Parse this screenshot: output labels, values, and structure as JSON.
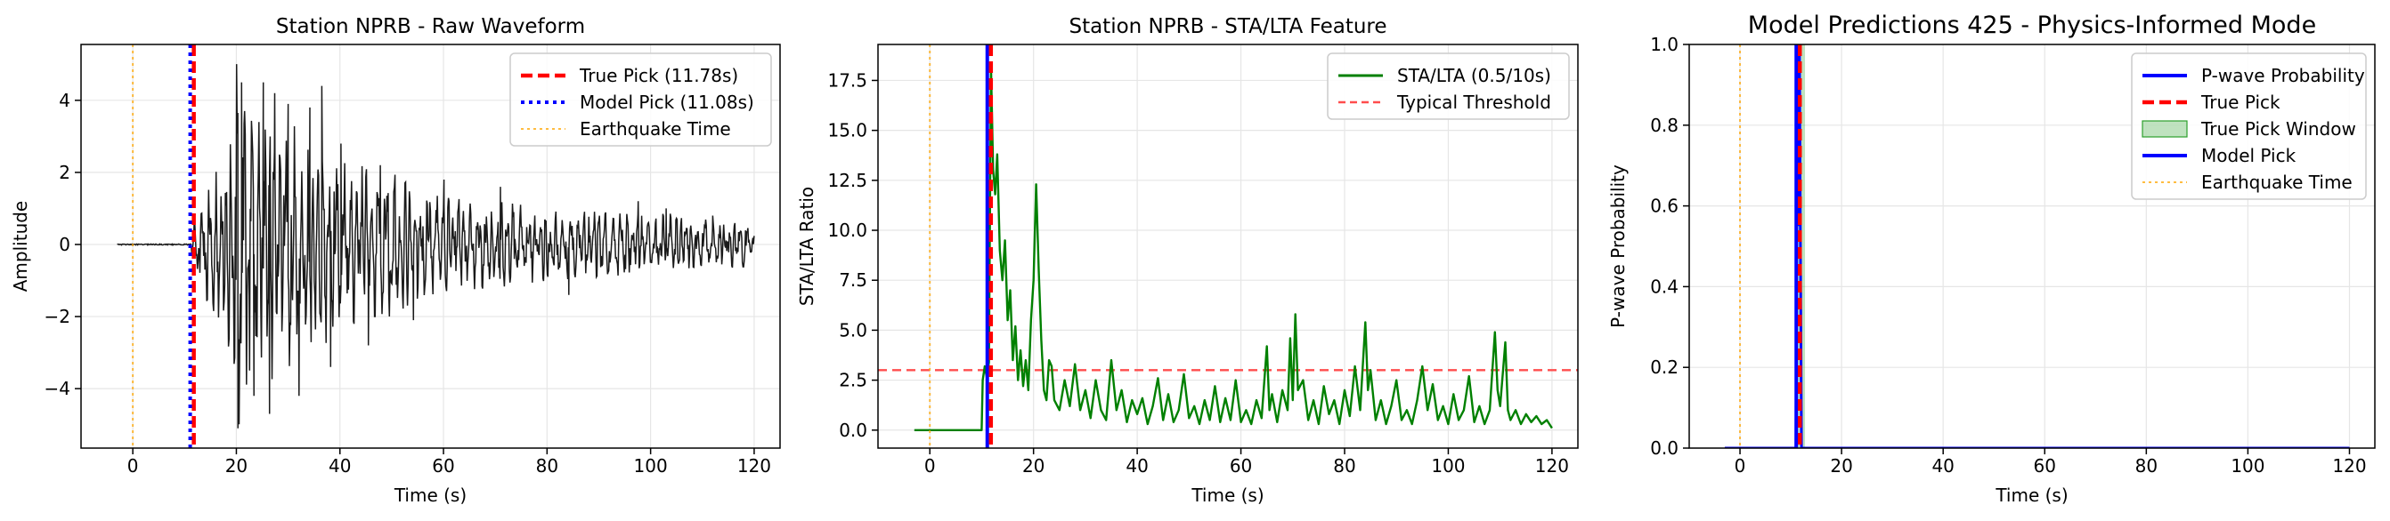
{
  "colors": {
    "waveform": "#1a1a1a",
    "sta_lta": "#008000",
    "true_pick": "#ff0000",
    "model_pick_raw": "#0000ff",
    "model_pick": "#0000ff",
    "earthquake": "#ffa500",
    "threshold": "#ff4d4d",
    "pick_window": "#2ca02c",
    "probability": "#0000ff",
    "grid": "#e6e6e6"
  },
  "chart_data": [
    {
      "type": "line",
      "title": "Station NPRB - Raw Waveform",
      "xlabel": "Time (s)",
      "ylabel": "Amplitude",
      "xlim": [
        -10,
        125
      ],
      "ylim": [
        -5.65,
        5.55
      ],
      "xticks": [
        0,
        20,
        40,
        60,
        80,
        100,
        120
      ],
      "yticks": [
        -4,
        -2,
        0,
        2,
        4
      ],
      "xtick_labels": [
        "0",
        "20",
        "40",
        "60",
        "80",
        "100",
        "120"
      ],
      "ytick_labels": [
        "−4",
        "−2",
        "0",
        "2",
        "4"
      ],
      "grid": true,
      "legend_position": "top-right",
      "series": [
        {
          "name": "True Pick (11.78s)",
          "kind": "vline",
          "x": 11.78,
          "style": "dashed"
        },
        {
          "name": "Model Pick (11.08s)",
          "kind": "vline",
          "x": 11.08,
          "style": "dotted"
        },
        {
          "name": "Earthquake Time",
          "kind": "vline",
          "x": 0,
          "style": "dotted-thin"
        }
      ],
      "waveform": {
        "x_start": -3,
        "x_end": 120,
        "onset": 11.2,
        "envelope": [
          [
            -3,
            0.02
          ],
          [
            11.2,
            0.02
          ],
          [
            11.5,
            0.6
          ],
          [
            14,
            1.6
          ],
          [
            17,
            2.2
          ],
          [
            19,
            3.2
          ],
          [
            20,
            5.2
          ],
          [
            22,
            4.4
          ],
          [
            24,
            4.0
          ],
          [
            26,
            4.2
          ],
          [
            28,
            3.6
          ],
          [
            30,
            3.4
          ],
          [
            34,
            3.0
          ],
          [
            36,
            3.6
          ],
          [
            38,
            2.6
          ],
          [
            42,
            2.4
          ],
          [
            46,
            2.0
          ],
          [
            50,
            2.0
          ],
          [
            55,
            1.5
          ],
          [
            60,
            1.3
          ],
          [
            70,
            1.2
          ],
          [
            80,
            1.0
          ],
          [
            90,
            0.9
          ],
          [
            100,
            0.8
          ],
          [
            105,
            0.9
          ],
          [
            110,
            0.7
          ],
          [
            120,
            0.6
          ]
        ],
        "peaks": [
          [
            20.3,
            -5.1
          ],
          [
            21.0,
            4.5
          ],
          [
            23.4,
            -4.2
          ],
          [
            25.2,
            4.5
          ],
          [
            26.4,
            -4.7
          ],
          [
            27.4,
            4.2
          ],
          [
            30.0,
            3.9
          ],
          [
            32.1,
            -4.2
          ],
          [
            34.2,
            3.8
          ],
          [
            36.5,
            4.4
          ],
          [
            38.2,
            -3.4
          ],
          [
            40.2,
            2.8
          ],
          [
            45.5,
            -2.8
          ],
          [
            47.8,
            2.2
          ],
          [
            54.2,
            -2.1
          ],
          [
            60.1,
            1.8
          ],
          [
            71.0,
            1.6
          ],
          [
            84.2,
            -1.4
          ],
          [
            97.6,
            1.2
          ],
          [
            103.0,
            1.0
          ],
          [
            112.0,
            0.8
          ]
        ]
      }
    },
    {
      "type": "line",
      "title": "Station NPRB - STA/LTA Feature",
      "xlabel": "Time (s)",
      "ylabel": "STA/LTA Ratio",
      "xlim": [
        -10,
        125
      ],
      "ylim": [
        -0.9,
        19.3
      ],
      "xticks": [
        0,
        20,
        40,
        60,
        80,
        100,
        120
      ],
      "yticks": [
        0.0,
        2.5,
        5.0,
        7.5,
        10.0,
        12.5,
        15.0,
        17.5
      ],
      "xtick_labels": [
        "0",
        "20",
        "40",
        "60",
        "80",
        "100",
        "120"
      ],
      "ytick_labels": [
        "0.0",
        "2.5",
        "5.0",
        "7.5",
        "10.0",
        "12.5",
        "15.0",
        "17.5"
      ],
      "grid": true,
      "legend_position": "top-right",
      "series": [
        {
          "name": "STA/LTA (0.5/10s)",
          "kind": "line"
        },
        {
          "name": "Typical Threshold",
          "kind": "hline",
          "y": 3.0,
          "style": "dashed"
        },
        {
          "name": "",
          "kind": "vline",
          "x": 11.08,
          "style": "solid"
        },
        {
          "name": "",
          "kind": "vline",
          "x": 11.78,
          "style": "dashed"
        },
        {
          "name": "",
          "kind": "vline",
          "x": 0,
          "style": "dotted-thin"
        }
      ],
      "sta_lta": {
        "x_start": -3,
        "x_end": 120,
        "baseline_until": 10.0,
        "keypoints": [
          [
            -3,
            0.0
          ],
          [
            10.0,
            0.0
          ],
          [
            10.2,
            2.5
          ],
          [
            10.6,
            3.2
          ],
          [
            11.0,
            2.6
          ],
          [
            11.4,
            3.4
          ],
          [
            11.8,
            18.2
          ],
          [
            12.2,
            13.0
          ],
          [
            12.6,
            11.8
          ],
          [
            13.0,
            13.8
          ],
          [
            13.5,
            9.0
          ],
          [
            14.0,
            7.5
          ],
          [
            14.5,
            9.5
          ],
          [
            15.0,
            5.5
          ],
          [
            15.5,
            7.0
          ],
          [
            16.0,
            3.5
          ],
          [
            16.5,
            5.2
          ],
          [
            17.0,
            2.5
          ],
          [
            17.5,
            4.0
          ],
          [
            18.0,
            2.2
          ],
          [
            18.5,
            3.5
          ],
          [
            19.0,
            2.0
          ],
          [
            19.5,
            5.5
          ],
          [
            20.0,
            7.5
          ],
          [
            20.5,
            12.3
          ],
          [
            21.0,
            8.0
          ],
          [
            21.5,
            4.5
          ],
          [
            22.0,
            2.0
          ],
          [
            22.5,
            1.5
          ],
          [
            23.0,
            3.5
          ],
          [
            23.5,
            3.2
          ],
          [
            24.0,
            1.5
          ],
          [
            25.0,
            1.0
          ],
          [
            26.0,
            2.5
          ],
          [
            27.0,
            1.2
          ],
          [
            28.0,
            3.3
          ],
          [
            29.0,
            1.0
          ],
          [
            30.0,
            2.0
          ],
          [
            31.0,
            0.6
          ],
          [
            32.0,
            2.5
          ],
          [
            33.0,
            1.0
          ],
          [
            34.0,
            0.5
          ],
          [
            35.0,
            3.5
          ],
          [
            36.0,
            1.0
          ],
          [
            37.0,
            2.0
          ],
          [
            38.0,
            0.4
          ],
          [
            39.0,
            1.5
          ],
          [
            40.0,
            0.8
          ],
          [
            41.0,
            1.6
          ],
          [
            42.0,
            0.3
          ],
          [
            43.0,
            1.2
          ],
          [
            44.0,
            2.6
          ],
          [
            45.0,
            0.5
          ],
          [
            46.0,
            1.8
          ],
          [
            47.0,
            0.4
          ],
          [
            48.0,
            1.0
          ],
          [
            49.0,
            2.8
          ],
          [
            50.0,
            0.6
          ],
          [
            51.0,
            1.2
          ],
          [
            52.0,
            0.3
          ],
          [
            53.0,
            1.5
          ],
          [
            54.0,
            0.5
          ],
          [
            55.0,
            2.2
          ],
          [
            56.0,
            0.4
          ],
          [
            57.0,
            1.6
          ],
          [
            58.0,
            0.5
          ],
          [
            59.0,
            2.5
          ],
          [
            60.0,
            0.4
          ],
          [
            61.0,
            1.0
          ],
          [
            62.0,
            0.3
          ],
          [
            63.0,
            1.5
          ],
          [
            64.0,
            0.6
          ],
          [
            65.0,
            4.2
          ],
          [
            65.5,
            1.0
          ],
          [
            66.0,
            1.8
          ],
          [
            67.0,
            0.4
          ],
          [
            68.0,
            2.0
          ],
          [
            69.0,
            1.0
          ],
          [
            69.5,
            4.6
          ],
          [
            70.0,
            1.5
          ],
          [
            70.5,
            5.8
          ],
          [
            71.0,
            2.0
          ],
          [
            72.0,
            2.5
          ],
          [
            73.0,
            0.5
          ],
          [
            74.0,
            1.5
          ],
          [
            75.0,
            0.3
          ],
          [
            76.0,
            2.2
          ],
          [
            77.0,
            0.8
          ],
          [
            78.0,
            1.5
          ],
          [
            79.0,
            0.3
          ],
          [
            80.0,
            2.0
          ],
          [
            81.0,
            0.7
          ],
          [
            82.0,
            3.2
          ],
          [
            83.0,
            1.0
          ],
          [
            84.0,
            5.4
          ],
          [
            84.5,
            2.0
          ],
          [
            85.0,
            3.0
          ],
          [
            86.0,
            0.5
          ],
          [
            87.0,
            1.5
          ],
          [
            88.0,
            0.3
          ],
          [
            89.0,
            1.2
          ],
          [
            90.0,
            2.5
          ],
          [
            91.0,
            0.5
          ],
          [
            92.0,
            1.0
          ],
          [
            93.0,
            0.3
          ],
          [
            94.0,
            1.5
          ],
          [
            95.0,
            3.2
          ],
          [
            96.0,
            1.0
          ],
          [
            97.0,
            2.3
          ],
          [
            98.0,
            0.5
          ],
          [
            99.0,
            1.2
          ],
          [
            100.0,
            0.3
          ],
          [
            101.0,
            1.8
          ],
          [
            102.0,
            0.5
          ],
          [
            103.0,
            1.0
          ],
          [
            104.0,
            2.7
          ],
          [
            105.0,
            0.4
          ],
          [
            106.0,
            1.2
          ],
          [
            107.0,
            0.3
          ],
          [
            108.0,
            1.0
          ],
          [
            109.0,
            4.9
          ],
          [
            109.5,
            2.0
          ],
          [
            110.0,
            1.2
          ],
          [
            111.0,
            4.4
          ],
          [
            111.5,
            1.0
          ],
          [
            112.0,
            0.5
          ],
          [
            113.0,
            1.0
          ],
          [
            114.0,
            0.3
          ],
          [
            115.0,
            0.8
          ],
          [
            116.0,
            0.4
          ],
          [
            117.0,
            0.7
          ],
          [
            118.0,
            0.3
          ],
          [
            119.0,
            0.5
          ],
          [
            120.0,
            0.1
          ]
        ]
      }
    },
    {
      "type": "line",
      "title": "Model Predictions 425 - Physics-Informed Mode",
      "xlabel": "Time (s)",
      "ylabel": "P-wave Probability",
      "xlim": [
        -10,
        125
      ],
      "ylim": [
        0,
        1.0
      ],
      "xticks": [
        0,
        20,
        40,
        60,
        80,
        100,
        120
      ],
      "yticks": [
        0.0,
        0.2,
        0.4,
        0.6,
        0.8,
        1.0
      ],
      "xtick_labels": [
        "0",
        "20",
        "40",
        "60",
        "80",
        "100",
        "120"
      ],
      "ytick_labels": [
        "0.0",
        "0.2",
        "0.4",
        "0.6",
        "0.8",
        "1.0"
      ],
      "grid": true,
      "legend_position": "top-right",
      "series": [
        {
          "name": "P-wave Probability",
          "kind": "line",
          "x": [
            -3,
            11.0,
            11.3,
            11.5,
            11.7,
            11.9,
            12.1,
            120
          ],
          "y": [
            0,
            0,
            1.0,
            0.55,
            1.0,
            0.5,
            0,
            0
          ]
        },
        {
          "name": "True Pick",
          "kind": "vline",
          "x": 11.78,
          "style": "dashed"
        },
        {
          "name": "True Pick Window",
          "kind": "vspan",
          "x": [
            10.8,
            12.8
          ]
        },
        {
          "name": "Model Pick",
          "kind": "vline",
          "x": 11.08,
          "style": "solid"
        },
        {
          "name": "Earthquake Time",
          "kind": "vline",
          "x": 0,
          "style": "dotted-thin"
        }
      ]
    }
  ]
}
